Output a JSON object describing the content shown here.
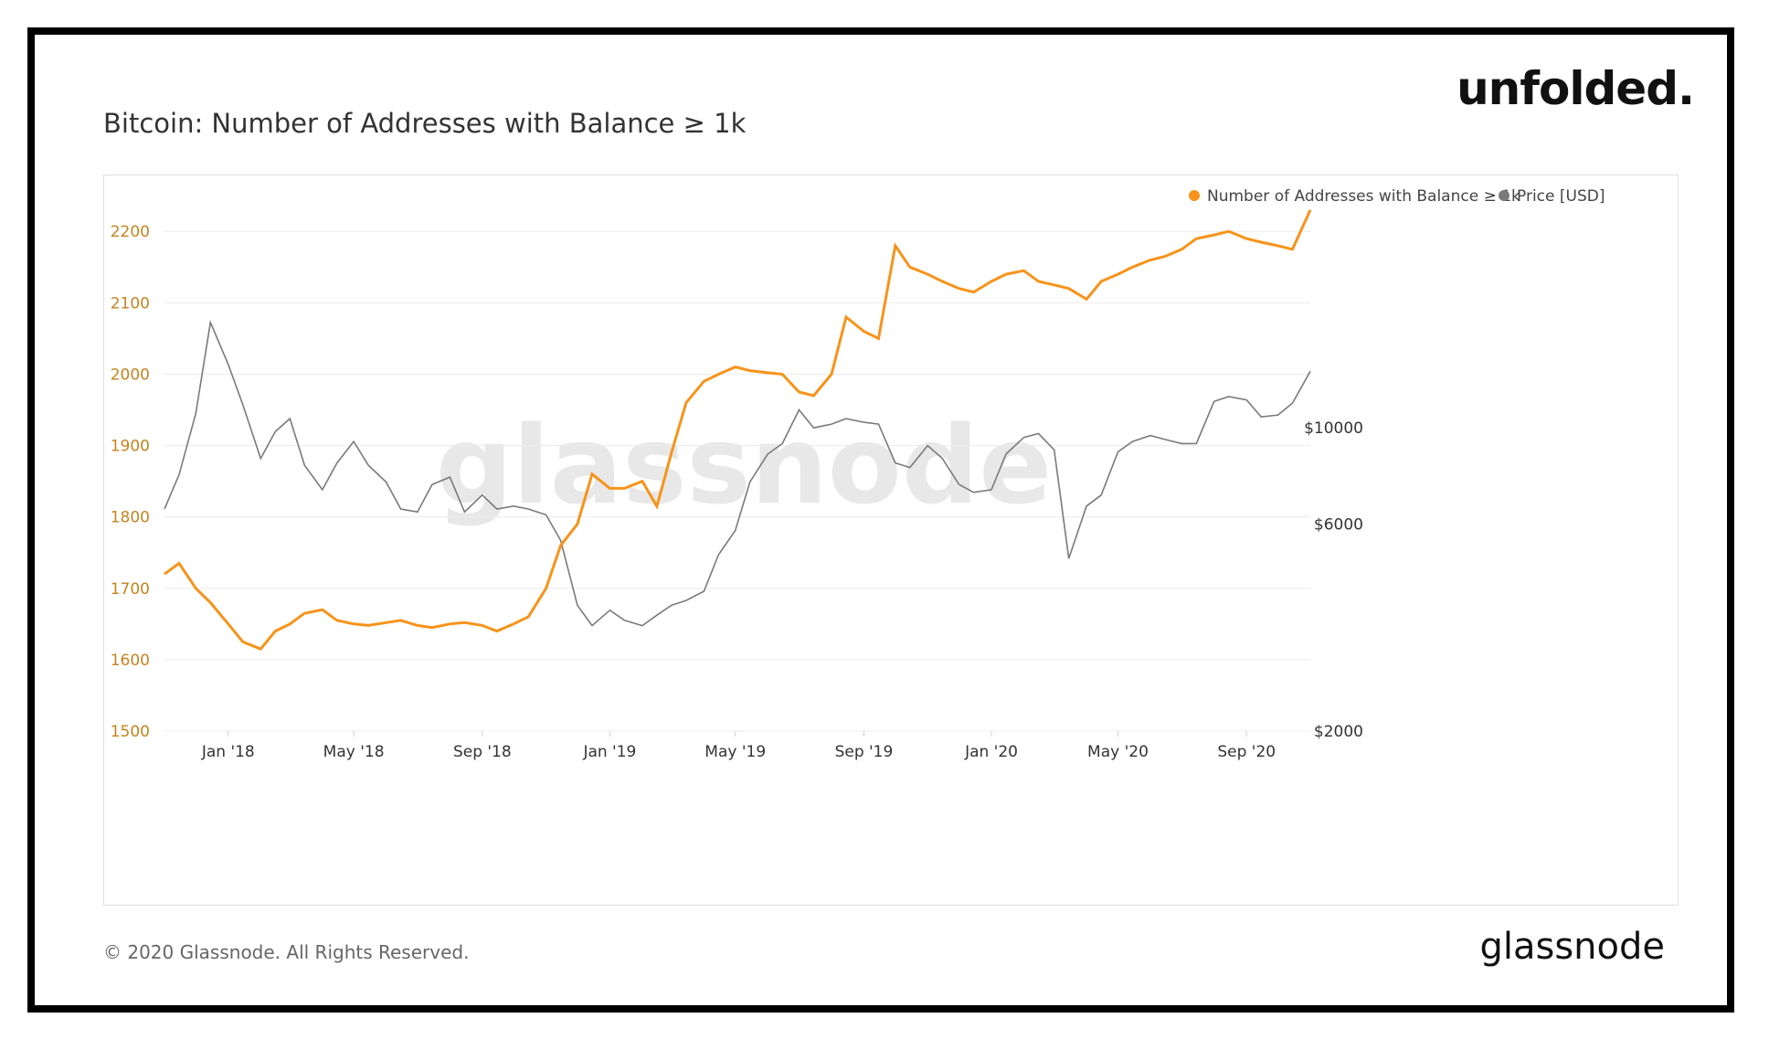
{
  "brand_top": "unfolded.",
  "title": "Bitcoin: Number of Addresses with Balance ≥ 1k",
  "watermark": "glassnode",
  "footer_copyright": "© 2020 Glassnode. All Rights Reserved.",
  "brand_bottom": "glassnode",
  "chart_data": {
    "type": "line",
    "title": "Bitcoin: Number of Addresses with Balance ≥ 1k",
    "legend_position": "top-right",
    "grid": true,
    "colors": {
      "addresses": "#f7931a",
      "price": "#7a7a7a"
    },
    "x_ticks": [
      "Jan '18",
      "May '18",
      "Sep '18",
      "Jan '19",
      "May '19",
      "Sep '19",
      "Jan '20",
      "May '20",
      "Sep '20"
    ],
    "y_left": {
      "ticks": [
        1500,
        1600,
        1700,
        1800,
        1900,
        2000,
        2100,
        2200
      ],
      "range": [
        1500,
        2240
      ]
    },
    "y_right": {
      "scale": "log",
      "ticks": [
        2000,
        6000,
        10000
      ],
      "tick_labels": [
        "$2000",
        "$6000",
        "$10000"
      ],
      "range": [
        2000,
        33000
      ]
    },
    "series": [
      {
        "name": "Number of Addresses with Balance ≥ 1k",
        "axis": "left",
        "x": [
          "2017-11-01",
          "2017-11-15",
          "2017-12-01",
          "2017-12-15",
          "2018-01-01",
          "2018-01-15",
          "2018-02-01",
          "2018-02-15",
          "2018-03-01",
          "2018-03-15",
          "2018-04-01",
          "2018-04-15",
          "2018-05-01",
          "2018-05-15",
          "2018-06-01",
          "2018-06-15",
          "2018-07-01",
          "2018-07-15",
          "2018-08-01",
          "2018-08-15",
          "2018-09-01",
          "2018-09-15",
          "2018-10-01",
          "2018-10-15",
          "2018-11-01",
          "2018-11-15",
          "2018-12-01",
          "2018-12-15",
          "2019-01-01",
          "2019-01-15",
          "2019-02-01",
          "2019-02-15",
          "2019-03-01",
          "2019-03-15",
          "2019-04-01",
          "2019-04-15",
          "2019-05-01",
          "2019-05-15",
          "2019-06-01",
          "2019-06-15",
          "2019-07-01",
          "2019-07-15",
          "2019-08-01",
          "2019-08-15",
          "2019-09-01",
          "2019-09-15",
          "2019-10-01",
          "2019-10-15",
          "2019-11-01",
          "2019-11-15",
          "2019-12-01",
          "2019-12-15",
          "2020-01-01",
          "2020-01-15",
          "2020-02-01",
          "2020-02-15",
          "2020-03-01",
          "2020-03-15",
          "2020-04-01",
          "2020-04-15",
          "2020-05-01",
          "2020-05-15",
          "2020-06-01",
          "2020-06-15",
          "2020-07-01",
          "2020-07-15",
          "2020-08-01",
          "2020-08-15",
          "2020-09-01",
          "2020-09-15",
          "2020-10-01",
          "2020-10-15",
          "2020-11-01"
        ],
        "values": [
          1720,
          1735,
          1700,
          1680,
          1650,
          1625,
          1615,
          1640,
          1650,
          1665,
          1670,
          1655,
          1650,
          1648,
          1652,
          1655,
          1648,
          1645,
          1650,
          1652,
          1648,
          1640,
          1650,
          1660,
          1700,
          1760,
          1790,
          1860,
          1840,
          1840,
          1850,
          1815,
          1890,
          1960,
          1990,
          2000,
          2010,
          2005,
          2002,
          2000,
          1975,
          1970,
          2000,
          2080,
          2060,
          2050,
          2180,
          2150,
          2140,
          2130,
          2120,
          2115,
          2130,
          2140,
          2145,
          2130,
          2125,
          2120,
          2105,
          2130,
          2140,
          2150,
          2160,
          2165,
          2175,
          2190,
          2195,
          2200,
          2190,
          2185,
          2180,
          2175,
          2230
        ]
      },
      {
        "name": "Price [USD]",
        "axis": "right",
        "x": [
          "2017-11-01",
          "2017-11-15",
          "2017-12-01",
          "2017-12-15",
          "2018-01-01",
          "2018-01-15",
          "2018-02-01",
          "2018-02-15",
          "2018-03-01",
          "2018-03-15",
          "2018-04-01",
          "2018-04-15",
          "2018-05-01",
          "2018-05-15",
          "2018-06-01",
          "2018-06-15",
          "2018-07-01",
          "2018-07-15",
          "2018-08-01",
          "2018-08-15",
          "2018-09-01",
          "2018-09-15",
          "2018-10-01",
          "2018-10-15",
          "2018-11-01",
          "2018-11-15",
          "2018-12-01",
          "2018-12-15",
          "2019-01-01",
          "2019-01-15",
          "2019-02-01",
          "2019-02-15",
          "2019-03-01",
          "2019-03-15",
          "2019-04-01",
          "2019-04-15",
          "2019-05-01",
          "2019-05-15",
          "2019-06-01",
          "2019-06-15",
          "2019-07-01",
          "2019-07-15",
          "2019-08-01",
          "2019-08-15",
          "2019-09-01",
          "2019-09-15",
          "2019-10-01",
          "2019-10-15",
          "2019-11-01",
          "2019-11-15",
          "2019-12-01",
          "2019-12-15",
          "2020-01-01",
          "2020-01-15",
          "2020-02-01",
          "2020-02-15",
          "2020-03-01",
          "2020-03-15",
          "2020-04-01",
          "2020-04-15",
          "2020-05-01",
          "2020-05-15",
          "2020-06-01",
          "2020-06-15",
          "2020-07-01",
          "2020-07-15",
          "2020-08-01",
          "2020-08-15",
          "2020-09-01",
          "2020-09-15",
          "2020-10-01",
          "2020-10-15",
          "2020-11-01"
        ],
        "values": [
          6500,
          7800,
          10800,
          17500,
          14000,
          11300,
          8500,
          9800,
          10500,
          8200,
          7200,
          8300,
          9300,
          8200,
          7500,
          6500,
          6400,
          7400,
          7700,
          6400,
          7000,
          6500,
          6600,
          6500,
          6300,
          5500,
          3900,
          3500,
          3800,
          3600,
          3500,
          3700,
          3900,
          4000,
          4200,
          5100,
          5800,
          7500,
          8700,
          9200,
          11000,
          10000,
          10200,
          10500,
          10300,
          10200,
          8300,
          8100,
          9100,
          8500,
          7400,
          7100,
          7200,
          8700,
          9500,
          9700,
          8900,
          5000,
          6600,
          7000,
          8800,
          9300,
          9600,
          9400,
          9200,
          9200,
          11500,
          11800,
          11600,
          10600,
          10700,
          11400,
          13500
        ]
      }
    ]
  }
}
